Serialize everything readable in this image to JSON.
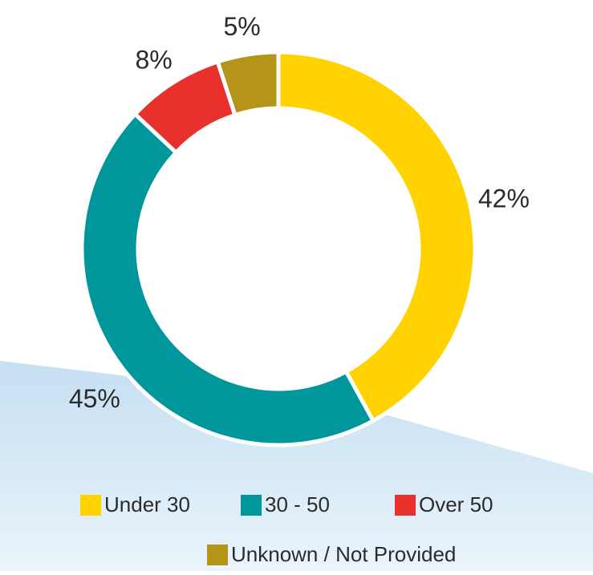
{
  "chart_data": {
    "type": "pie",
    "categories": [
      "Under 30",
      "30 - 50",
      "Over 50",
      "Unknown / Not Provided"
    ],
    "values": [
      42,
      45,
      8,
      5
    ],
    "value_labels": [
      "42%",
      "45%",
      "8%",
      "5%"
    ],
    "colors": [
      "#ffd200",
      "#00979c",
      "#e8302d",
      "#b5941a"
    ],
    "donut": true
  }
}
